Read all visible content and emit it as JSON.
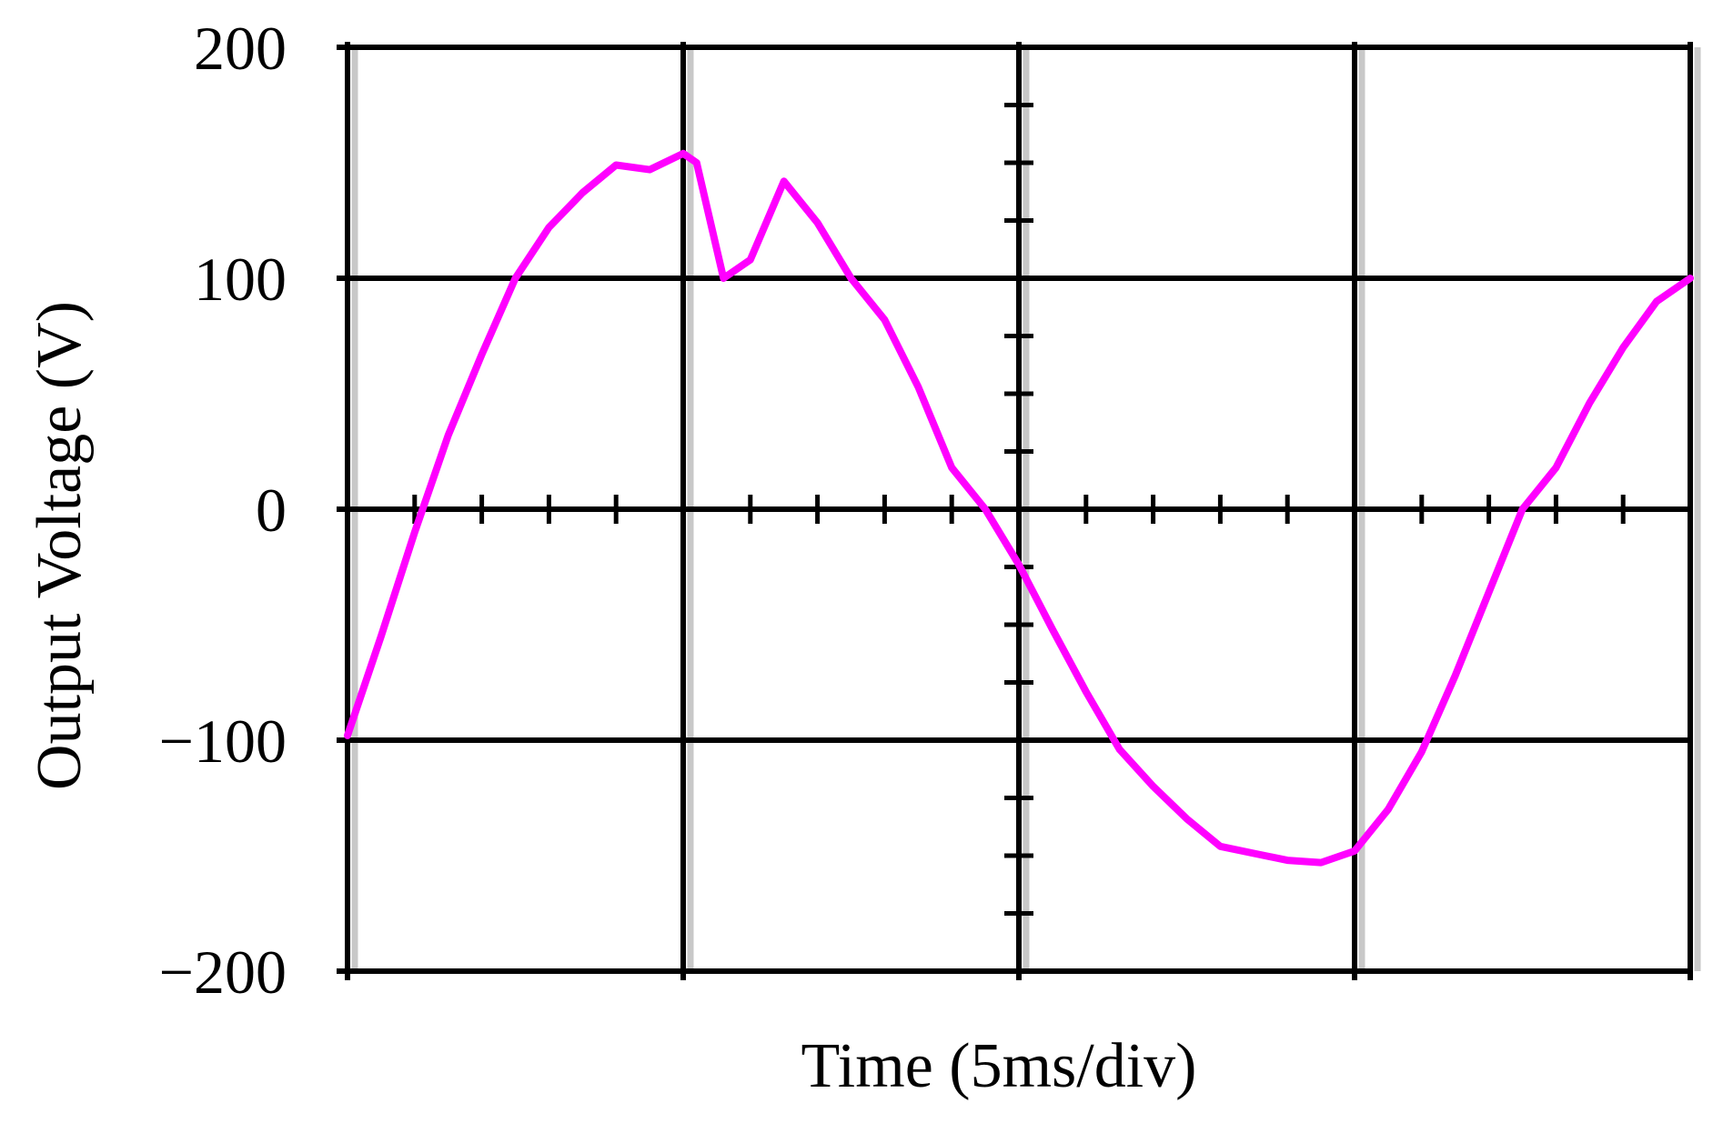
{
  "chart_data": {
    "type": "line",
    "title": "",
    "xlabel": "Time (5ms/div)",
    "ylabel": "Output Voltage (V)",
    "ylim": [
      -200,
      200
    ],
    "xlim": [
      0,
      20
    ],
    "x_divisions": 4,
    "x_unit_per_div_ms": 5,
    "yticks": [
      200,
      100,
      0,
      -100,
      -200
    ],
    "ytick_labels": [
      "200",
      "100",
      "0",
      "−100",
      "−200"
    ],
    "grid": true,
    "legend": "none",
    "series": [
      {
        "color": "#ff00ff",
        "x": [
          0,
          0.5,
          1.0,
          1.5,
          2.0,
          2.5,
          3.0,
          3.5,
          4.0,
          4.5,
          5.0,
          5.2,
          5.6,
          6.0,
          6.5,
          7.0,
          7.5,
          8.0,
          8.5,
          9.0,
          9.5,
          10.0,
          10.5,
          11.0,
          11.5,
          12.0,
          12.5,
          13.0,
          13.5,
          14.0,
          14.5,
          15.0,
          15.5,
          16.0,
          16.5,
          17.0,
          17.5,
          18.0,
          18.5,
          19.0,
          19.5,
          20.0
        ],
        "y": [
          -98,
          -55,
          -10,
          32,
          67,
          100,
          122,
          137,
          149,
          147,
          154,
          150,
          100,
          108,
          142,
          124,
          100,
          82,
          53,
          18,
          0,
          -24,
          -52,
          -79,
          -104,
          -120,
          -134,
          -146,
          -149,
          -152,
          -153,
          -148,
          -130,
          -105,
          -72,
          -36,
          0,
          18,
          46,
          70,
          90,
          100
        ]
      }
    ]
  },
  "colors": {
    "grid": "#000000",
    "grid_shadow": "#c8c8c8",
    "trace": "#ff00ff",
    "background": "#ffffff"
  }
}
